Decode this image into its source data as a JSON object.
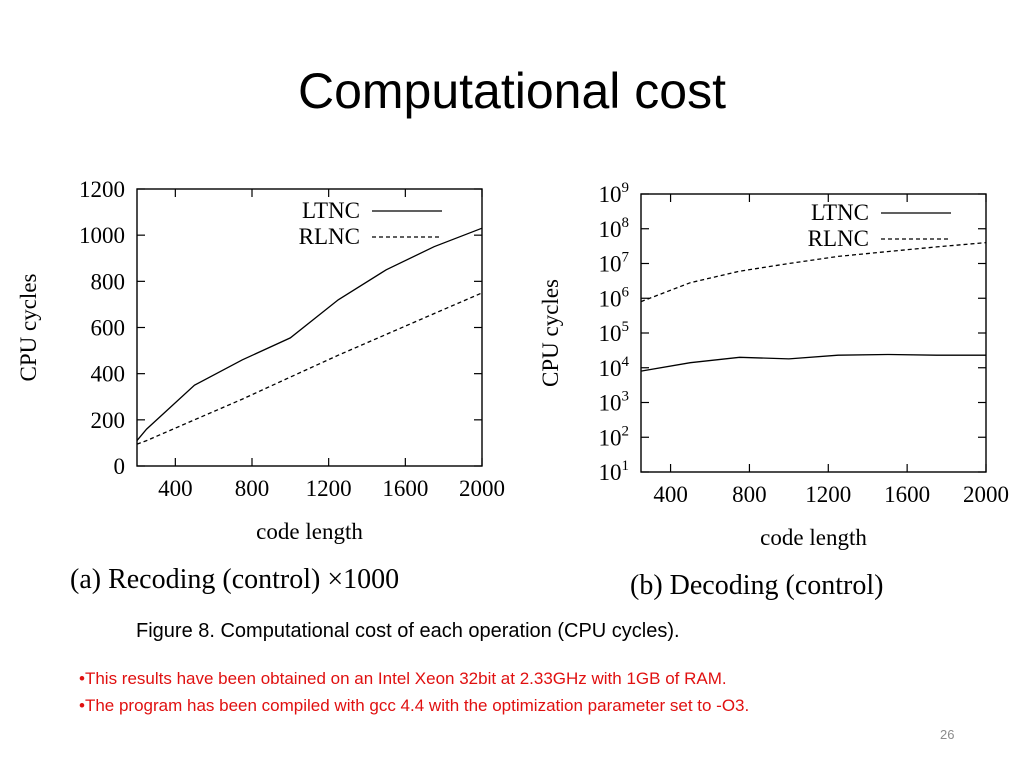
{
  "slide": {
    "title": "Computational cost",
    "caption": "Figure 8. Computational cost of each operation (CPU cycles).",
    "notes": [
      "•This results have been obtained on an Intel Xeon 32bit at 2.33GHz with 1GB of RAM.",
      "•The program has been compiled with gcc 4.4 with the optimization parameter set to -O3."
    ],
    "page_number": "26"
  },
  "chart_data": [
    {
      "type": "line",
      "title": "(a) Recoding (control) ×1000",
      "xlabel": "code length",
      "ylabel": "CPU cycles",
      "xlim": [
        200,
        2000
      ],
      "ylim": [
        0,
        1200
      ],
      "xticks": [
        400,
        800,
        1200,
        1600,
        2000
      ],
      "yticks": [
        0,
        200,
        400,
        600,
        800,
        1000,
        1200
      ],
      "legend_position": "top-right",
      "colors": {
        "axis": "#000000",
        "series": "#000000"
      },
      "series": [
        {
          "name": "LTNC",
          "style": "solid",
          "x": [
            200,
            250,
            500,
            750,
            1000,
            1250,
            1500,
            1750,
            2000
          ],
          "y": [
            110,
            160,
            350,
            460,
            555,
            720,
            850,
            950,
            1030
          ]
        },
        {
          "name": "RLNC",
          "style": "dashed",
          "x": [
            200,
            250,
            500,
            750,
            1000,
            1250,
            1500,
            1750,
            2000
          ],
          "y": [
            95,
            110,
            200,
            290,
            385,
            480,
            570,
            660,
            750
          ]
        }
      ]
    },
    {
      "type": "line",
      "title": "(b) Decoding (control)",
      "xlabel": "code length",
      "ylabel": "CPU cycles",
      "yscale": "log",
      "xlim": [
        250,
        2000
      ],
      "ylim": [
        10,
        1000000000
      ],
      "xticks": [
        400,
        800,
        1200,
        1600,
        2000
      ],
      "yticks": [
        10,
        100,
        1000,
        10000,
        100000,
        1000000,
        10000000,
        100000000,
        1000000000
      ],
      "ytick_exponents": [
        "1",
        "2",
        "3",
        "4",
        "5",
        "6",
        "7",
        "8",
        "9"
      ],
      "ytick_base": "10",
      "legend_position": "top-right",
      "colors": {
        "axis": "#000000",
        "series": "#000000"
      },
      "series": [
        {
          "name": "LTNC",
          "style": "solid",
          "x": [
            250,
            500,
            750,
            1000,
            1250,
            1500,
            1750,
            2000
          ],
          "y": [
            8000,
            14000,
            20000,
            18000,
            23000,
            24000,
            23000,
            23000
          ]
        },
        {
          "name": "RLNC",
          "style": "dashed",
          "x": [
            250,
            500,
            750,
            1000,
            1250,
            1500,
            1750,
            2000
          ],
          "y": [
            800000,
            2800000,
            6000000,
            10000000,
            16000000,
            22000000,
            30000000,
            40000000
          ]
        }
      ]
    }
  ]
}
